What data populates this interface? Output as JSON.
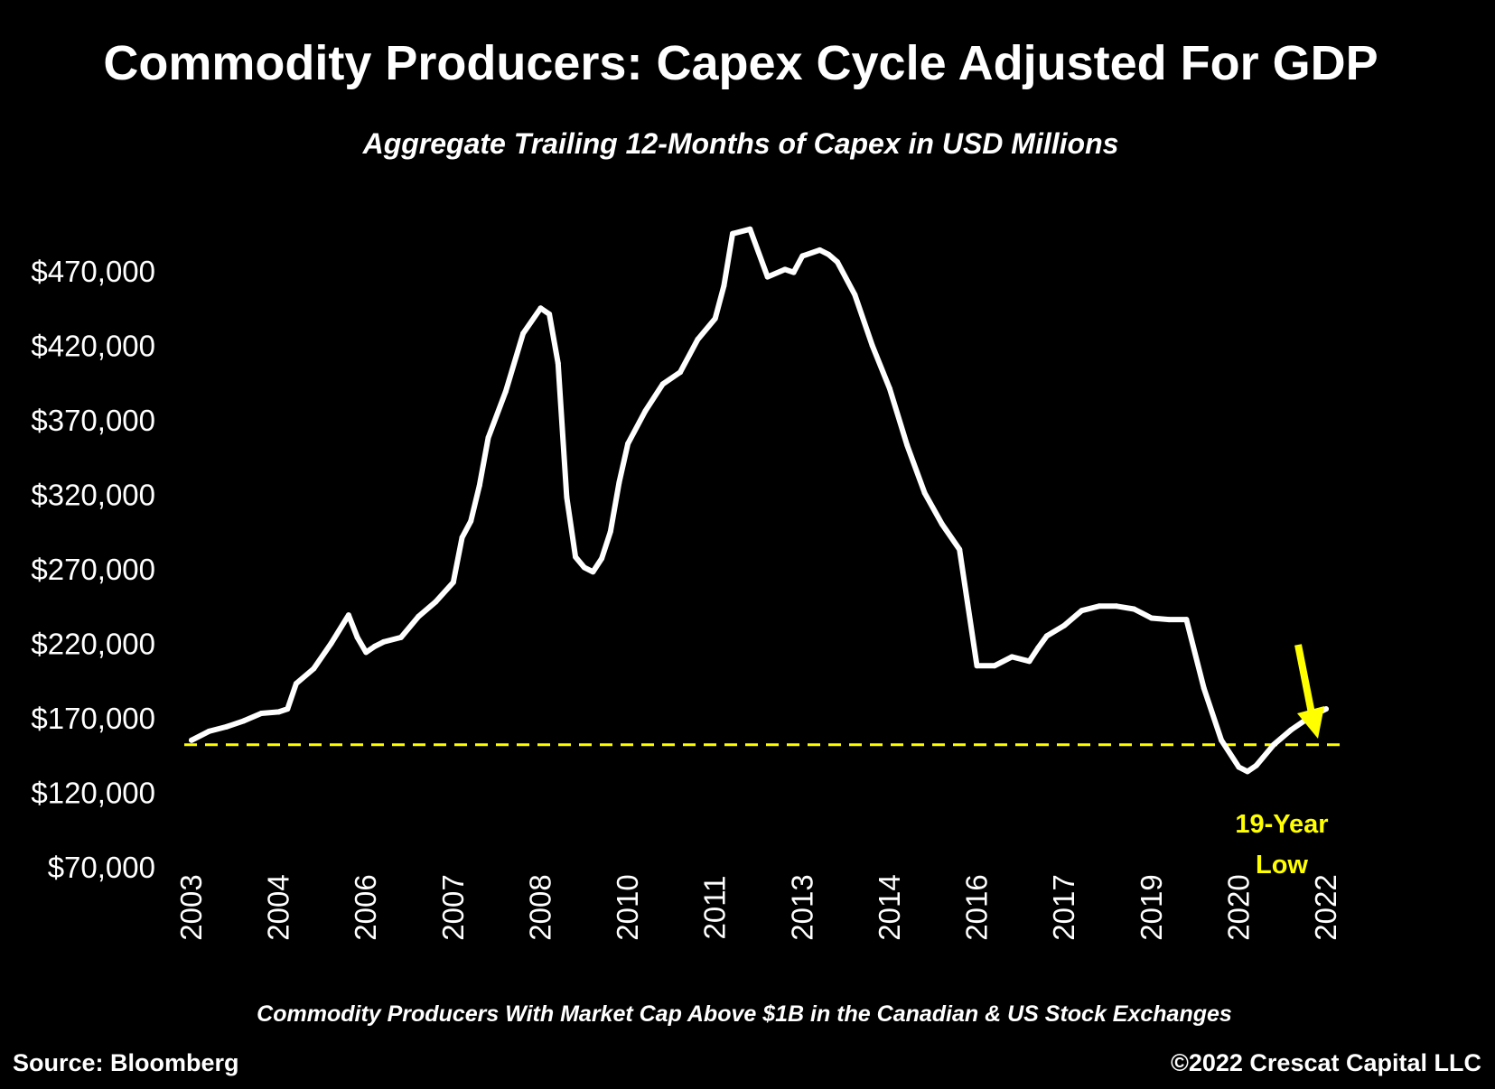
{
  "chart_data": {
    "type": "line",
    "title": "Commodity Producers: Capex Cycle Adjusted For GDP",
    "subtitle": "Aggregate Trailing 12-Months of Capex in USD Millions",
    "xlabel": "Commodity Producers With Market Cap Above $1B in the Canadian & US Stock Exchanges",
    "ylabel": "",
    "ylim": [
      70000,
      520000
    ],
    "y_ticks": [
      70000,
      120000,
      170000,
      220000,
      270000,
      320000,
      370000,
      420000,
      470000
    ],
    "y_tick_labels": [
      "$70,000",
      "$120,000",
      "$170,000",
      "$220,000",
      "$270,000",
      "$320,000",
      "$370,000",
      "$420,000",
      "$470,000"
    ],
    "x_tick_labels": [
      "2003",
      "2004",
      "2006",
      "2007",
      "2008",
      "2010",
      "2011",
      "2013",
      "2014",
      "2016",
      "2017",
      "2019",
      "2020",
      "2022"
    ],
    "x_tick_positions": [
      0,
      10,
      20,
      30,
      40,
      50,
      60,
      70,
      80,
      90,
      100,
      110,
      120,
      130
    ],
    "grid": false,
    "series": [
      {
        "color": "#ffffff",
        "x": [
          0,
          2,
          4,
          6,
          8,
          10,
          11,
          12,
          14,
          16,
          18,
          19,
          20,
          21,
          22,
          24,
          26,
          28,
          30,
          31,
          32,
          33,
          34,
          36,
          38,
          40,
          41,
          42,
          43,
          44,
          45,
          46,
          47,
          48,
          49,
          50,
          52,
          54,
          56,
          58,
          60,
          61,
          62,
          64,
          66,
          68,
          69,
          70,
          72,
          73,
          74,
          76,
          78,
          80,
          82,
          84,
          86,
          88,
          90,
          92,
          94,
          96,
          97,
          98,
          100,
          102,
          104,
          106,
          108,
          110,
          112,
          114,
          116,
          118,
          120,
          121,
          122,
          124,
          126,
          128,
          130
        ],
        "values": [
          155000,
          161000,
          164000,
          168000,
          173000,
          174000,
          176000,
          193000,
          203000,
          220000,
          239000,
          224000,
          214000,
          218000,
          221000,
          224000,
          238000,
          248000,
          261000,
          291000,
          302000,
          326000,
          358000,
          389000,
          428000,
          445000,
          441000,
          408000,
          318000,
          278000,
          271000,
          268000,
          277000,
          295000,
          328000,
          354000,
          376000,
          394000,
          402000,
          424000,
          438000,
          460000,
          495000,
          498000,
          466000,
          471000,
          469000,
          480000,
          484000,
          481000,
          476000,
          454000,
          420000,
          391000,
          353000,
          321000,
          300000,
          283000,
          205000,
          205000,
          211000,
          208000,
          217000,
          225000,
          232000,
          242000,
          245000,
          245000,
          243000,
          237000,
          236000,
          236000,
          190000,
          155000,
          137000,
          134000,
          138000,
          152000,
          162000,
          170000,
          176000
        ]
      }
    ],
    "reference_line": {
      "value": 152000,
      "color": "#ffff00",
      "style": "dashed"
    },
    "annotation": {
      "line1": "19-Year",
      "line2": "Low",
      "color": "#ffff00"
    }
  },
  "footer": {
    "source": "Source: Bloomberg",
    "copyright": "©2022 Crescat Capital LLC"
  }
}
